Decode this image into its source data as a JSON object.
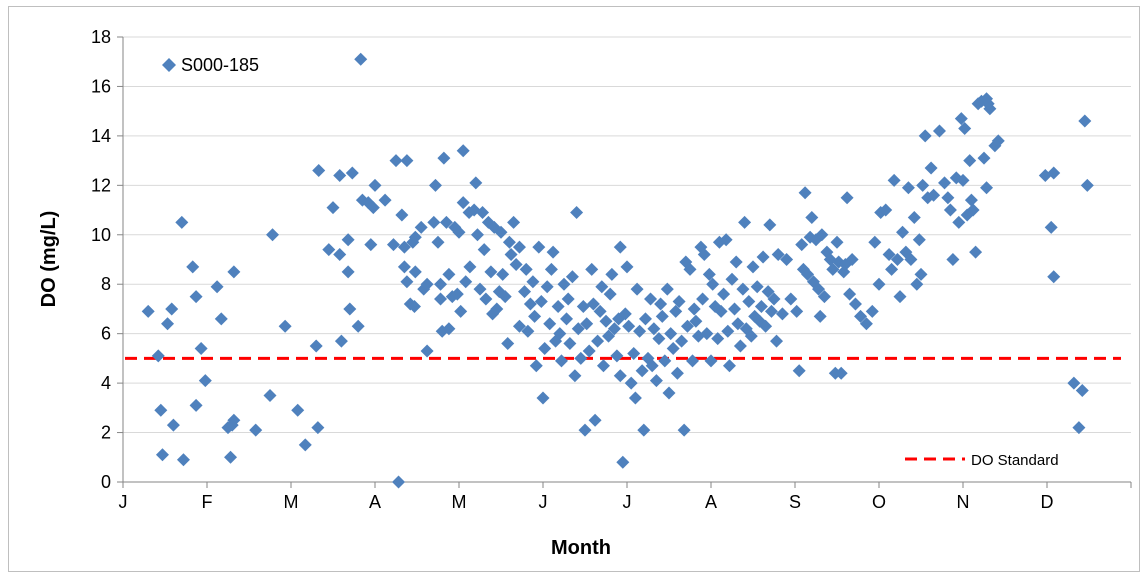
{
  "chart_data": {
    "type": "scatter",
    "title": "",
    "xlabel": "Month",
    "ylabel": "DO (mg/L)",
    "x_tick_labels": [
      "J",
      "F",
      "M",
      "A",
      "M",
      "J",
      "J",
      "A",
      "S",
      "O",
      "N",
      "D"
    ],
    "xlim": [
      1,
      13
    ],
    "ylim": [
      0,
      18
    ],
    "y_ticks": [
      "0",
      "2",
      "4",
      "6",
      "8",
      "10",
      "12",
      "14",
      "16",
      "18"
    ],
    "grid": "horizontal",
    "legend_position": "top-left",
    "series": [
      {
        "name": "S000-185",
        "color": "#4f81bd",
        "marker": "diamond",
        "points": [
          [
            1.3,
            6.9
          ],
          [
            1.42,
            5.1
          ],
          [
            1.45,
            2.9
          ],
          [
            1.47,
            1.1
          ],
          [
            1.53,
            6.4
          ],
          [
            1.58,
            7.0
          ],
          [
            1.6,
            2.3
          ],
          [
            1.7,
            10.5
          ],
          [
            1.72,
            0.9
          ],
          [
            1.83,
            8.7
          ],
          [
            1.87,
            7.5
          ],
          [
            1.87,
            3.1
          ],
          [
            1.93,
            5.4
          ],
          [
            1.98,
            4.1
          ],
          [
            2.12,
            7.9
          ],
          [
            2.17,
            6.6
          ],
          [
            2.25,
            2.2
          ],
          [
            2.28,
            1.0
          ],
          [
            2.32,
            8.5
          ],
          [
            2.32,
            2.5
          ],
          [
            2.3,
            2.3
          ],
          [
            2.58,
            2.1
          ],
          [
            2.75,
            3.5
          ],
          [
            2.78,
            10.0
          ],
          [
            2.93,
            6.3
          ],
          [
            3.08,
            2.9
          ],
          [
            3.17,
            1.5
          ],
          [
            3.3,
            5.5
          ],
          [
            3.32,
            2.2
          ],
          [
            3.33,
            12.6
          ],
          [
            3.45,
            9.4
          ],
          [
            3.5,
            11.1
          ],
          [
            3.58,
            12.4
          ],
          [
            3.6,
            5.7
          ],
          [
            3.58,
            9.2
          ],
          [
            3.68,
            8.5
          ],
          [
            3.68,
            9.8
          ],
          [
            3.7,
            7.0
          ],
          [
            3.73,
            12.5
          ],
          [
            3.8,
            6.3
          ],
          [
            3.83,
            17.1
          ],
          [
            3.85,
            11.4
          ],
          [
            3.92,
            11.3
          ],
          [
            3.95,
            9.6
          ],
          [
            3.98,
            11.1
          ],
          [
            4.0,
            12.0
          ],
          [
            4.12,
            11.4
          ],
          [
            4.22,
            9.6
          ],
          [
            4.25,
            13.0
          ],
          [
            4.28,
            0.0
          ],
          [
            4.32,
            10.8
          ],
          [
            4.35,
            9.5
          ],
          [
            4.38,
            13.0
          ],
          [
            4.35,
            8.7
          ],
          [
            4.38,
            8.1
          ],
          [
            4.42,
            7.2
          ],
          [
            4.45,
            9.7
          ],
          [
            4.47,
            7.1
          ],
          [
            4.48,
            8.5
          ],
          [
            4.48,
            9.9
          ],
          [
            4.55,
            10.3
          ],
          [
            4.58,
            7.8
          ],
          [
            4.62,
            8.0
          ],
          [
            4.62,
            5.3
          ],
          [
            4.7,
            10.5
          ],
          [
            4.72,
            12.0
          ],
          [
            4.75,
            9.7
          ],
          [
            4.78,
            8.0
          ],
          [
            4.78,
            7.4
          ],
          [
            4.8,
            6.1
          ],
          [
            4.82,
            13.1
          ],
          [
            4.85,
            10.5
          ],
          [
            4.88,
            8.4
          ],
          [
            4.88,
            6.2
          ],
          [
            4.92,
            7.5
          ],
          [
            4.95,
            10.3
          ],
          [
            4.98,
            7.6
          ],
          [
            5.0,
            10.1
          ],
          [
            5.02,
            6.9
          ],
          [
            5.05,
            13.4
          ],
          [
            5.05,
            11.3
          ],
          [
            5.08,
            8.1
          ],
          [
            5.12,
            10.9
          ],
          [
            5.13,
            8.7
          ],
          [
            5.18,
            11.0
          ],
          [
            5.2,
            12.1
          ],
          [
            5.22,
            10.0
          ],
          [
            5.25,
            7.8
          ],
          [
            5.28,
            10.9
          ],
          [
            5.3,
            9.4
          ],
          [
            5.32,
            7.4
          ],
          [
            5.35,
            10.5
          ],
          [
            5.38,
            8.5
          ],
          [
            5.4,
            6.8
          ],
          [
            5.42,
            10.3
          ],
          [
            5.45,
            7.0
          ],
          [
            5.48,
            7.7
          ],
          [
            5.5,
            10.1
          ],
          [
            5.52,
            8.4
          ],
          [
            5.55,
            7.5
          ],
          [
            5.58,
            5.6
          ],
          [
            5.6,
            9.7
          ],
          [
            5.62,
            9.2
          ],
          [
            5.65,
            10.5
          ],
          [
            5.68,
            8.8
          ],
          [
            5.72,
            9.5
          ],
          [
            5.72,
            6.3
          ],
          [
            5.78,
            7.7
          ],
          [
            5.8,
            8.6
          ],
          [
            5.82,
            6.1
          ],
          [
            5.85,
            7.2
          ],
          [
            5.88,
            8.1
          ],
          [
            5.9,
            6.7
          ],
          [
            5.92,
            4.7
          ],
          [
            5.95,
            9.5
          ],
          [
            5.98,
            7.3
          ],
          [
            6.0,
            3.4
          ],
          [
            6.02,
            5.4
          ],
          [
            6.05,
            7.9
          ],
          [
            6.08,
            6.4
          ],
          [
            6.1,
            8.6
          ],
          [
            6.12,
            9.3
          ],
          [
            6.15,
            5.7
          ],
          [
            6.18,
            7.1
          ],
          [
            6.2,
            6.0
          ],
          [
            6.22,
            4.9
          ],
          [
            6.25,
            8.0
          ],
          [
            6.28,
            6.6
          ],
          [
            6.3,
            7.4
          ],
          [
            6.32,
            5.6
          ],
          [
            6.35,
            8.3
          ],
          [
            6.38,
            4.3
          ],
          [
            6.4,
            10.9
          ],
          [
            6.42,
            6.2
          ],
          [
            6.45,
            5.0
          ],
          [
            6.48,
            7.1
          ],
          [
            6.5,
            2.1
          ],
          [
            6.52,
            6.4
          ],
          [
            6.55,
            5.3
          ],
          [
            6.58,
            8.6
          ],
          [
            6.6,
            7.2
          ],
          [
            6.62,
            2.5
          ],
          [
            6.65,
            5.7
          ],
          [
            6.68,
            6.9
          ],
          [
            6.7,
            7.9
          ],
          [
            6.72,
            4.7
          ],
          [
            6.75,
            6.5
          ],
          [
            6.78,
            5.9
          ],
          [
            6.8,
            7.6
          ],
          [
            6.82,
            8.4
          ],
          [
            6.85,
            6.2
          ],
          [
            6.88,
            5.1
          ],
          [
            6.9,
            6.6
          ],
          [
            6.92,
            9.5
          ],
          [
            6.92,
            4.3
          ],
          [
            6.95,
            0.8
          ],
          [
            6.98,
            6.8
          ],
          [
            7.0,
            8.7
          ],
          [
            7.02,
            6.3
          ],
          [
            7.05,
            4.0
          ],
          [
            7.08,
            5.2
          ],
          [
            7.1,
            3.4
          ],
          [
            7.12,
            7.8
          ],
          [
            7.15,
            6.1
          ],
          [
            7.18,
            4.5
          ],
          [
            7.2,
            2.1
          ],
          [
            7.22,
            6.6
          ],
          [
            7.25,
            5.0
          ],
          [
            7.28,
            7.4
          ],
          [
            7.3,
            4.7
          ],
          [
            7.32,
            6.2
          ],
          [
            7.35,
            4.1
          ],
          [
            7.38,
            5.8
          ],
          [
            7.4,
            7.2
          ],
          [
            7.42,
            6.7
          ],
          [
            7.45,
            4.9
          ],
          [
            7.48,
            7.8
          ],
          [
            7.5,
            3.6
          ],
          [
            7.52,
            6.0
          ],
          [
            7.55,
            5.4
          ],
          [
            7.58,
            6.9
          ],
          [
            7.6,
            4.4
          ],
          [
            7.62,
            7.3
          ],
          [
            7.65,
            5.7
          ],
          [
            7.68,
            2.1
          ],
          [
            7.7,
            8.9
          ],
          [
            7.72,
            6.3
          ],
          [
            7.75,
            8.6
          ],
          [
            7.78,
            4.9
          ],
          [
            7.8,
            7.0
          ],
          [
            7.82,
            6.5
          ],
          [
            7.85,
            5.9
          ],
          [
            7.88,
            9.5
          ],
          [
            7.9,
            7.4
          ],
          [
            7.92,
            9.2
          ],
          [
            7.95,
            6.0
          ],
          [
            7.98,
            8.4
          ],
          [
            8.0,
            4.9
          ],
          [
            8.02,
            8.0
          ],
          [
            8.05,
            7.1
          ],
          [
            8.08,
            5.8
          ],
          [
            8.1,
            9.7
          ],
          [
            8.12,
            6.9
          ],
          [
            8.15,
            7.6
          ],
          [
            8.18,
            9.8
          ],
          [
            8.2,
            6.1
          ],
          [
            8.22,
            4.7
          ],
          [
            8.25,
            8.2
          ],
          [
            8.28,
            7.0
          ],
          [
            8.3,
            8.9
          ],
          [
            8.32,
            6.4
          ],
          [
            8.35,
            5.5
          ],
          [
            8.38,
            7.8
          ],
          [
            8.4,
            10.5
          ],
          [
            8.42,
            6.2
          ],
          [
            8.45,
            7.3
          ],
          [
            8.48,
            5.9
          ],
          [
            8.5,
            8.7
          ],
          [
            8.52,
            6.7
          ],
          [
            8.55,
            7.9
          ],
          [
            8.58,
            6.5
          ],
          [
            8.6,
            7.1
          ],
          [
            8.62,
            9.1
          ],
          [
            8.65,
            6.3
          ],
          [
            8.68,
            7.7
          ],
          [
            8.7,
            10.4
          ],
          [
            8.72,
            6.9
          ],
          [
            8.75,
            7.4
          ],
          [
            8.78,
            5.7
          ],
          [
            8.8,
            9.2
          ],
          [
            8.85,
            6.8
          ],
          [
            8.9,
            9.0
          ],
          [
            8.95,
            7.4
          ],
          [
            9.02,
            6.9
          ],
          [
            9.05,
            4.5
          ],
          [
            9.08,
            9.6
          ],
          [
            9.1,
            8.6
          ],
          [
            9.12,
            11.7
          ],
          [
            9.15,
            8.4
          ],
          [
            9.18,
            9.9
          ],
          [
            9.2,
            10.7
          ],
          [
            9.22,
            8.1
          ],
          [
            9.25,
            9.8
          ],
          [
            9.28,
            7.8
          ],
          [
            9.3,
            6.7
          ],
          [
            9.32,
            10.0
          ],
          [
            9.35,
            7.5
          ],
          [
            9.38,
            9.3
          ],
          [
            9.42,
            9.0
          ],
          [
            9.45,
            8.6
          ],
          [
            9.48,
            4.4
          ],
          [
            9.5,
            9.7
          ],
          [
            9.52,
            8.9
          ],
          [
            9.55,
            4.4
          ],
          [
            9.58,
            8.5
          ],
          [
            9.6,
            8.8
          ],
          [
            9.62,
            11.5
          ],
          [
            9.65,
            7.6
          ],
          [
            9.68,
            9.0
          ],
          [
            9.72,
            7.2
          ],
          [
            9.78,
            6.7
          ],
          [
            9.85,
            6.4
          ],
          [
            9.92,
            6.9
          ],
          [
            9.95,
            9.7
          ],
          [
            10.0,
            8.0
          ],
          [
            10.02,
            10.9
          ],
          [
            10.08,
            11.0
          ],
          [
            10.12,
            9.2
          ],
          [
            10.15,
            8.6
          ],
          [
            10.18,
            12.2
          ],
          [
            10.22,
            9.0
          ],
          [
            10.25,
            7.5
          ],
          [
            10.28,
            10.1
          ],
          [
            10.32,
            9.3
          ],
          [
            10.35,
            11.9
          ],
          [
            10.38,
            9.0
          ],
          [
            10.42,
            10.7
          ],
          [
            10.45,
            8.0
          ],
          [
            10.48,
            9.8
          ],
          [
            10.5,
            8.4
          ],
          [
            10.52,
            12.0
          ],
          [
            10.55,
            14.0
          ],
          [
            10.58,
            11.5
          ],
          [
            10.62,
            12.7
          ],
          [
            10.65,
            11.6
          ],
          [
            10.72,
            14.2
          ],
          [
            10.78,
            12.1
          ],
          [
            10.82,
            11.5
          ],
          [
            10.85,
            11.0
          ],
          [
            10.88,
            9.0
          ],
          [
            10.92,
            12.3
          ],
          [
            10.95,
            10.5
          ],
          [
            10.98,
            14.7
          ],
          [
            11.0,
            12.2
          ],
          [
            11.02,
            14.3
          ],
          [
            11.05,
            10.8
          ],
          [
            11.08,
            13.0
          ],
          [
            11.1,
            11.4
          ],
          [
            11.12,
            11.0
          ],
          [
            11.15,
            9.3
          ],
          [
            11.18,
            15.3
          ],
          [
            11.22,
            15.4
          ],
          [
            11.25,
            13.1
          ],
          [
            11.28,
            15.5
          ],
          [
            11.28,
            11.9
          ],
          [
            11.32,
            15.1
          ],
          [
            11.38,
            13.6
          ],
          [
            11.42,
            13.8
          ],
          [
            11.98,
            12.4
          ],
          [
            12.05,
            10.3
          ],
          [
            12.08,
            12.5
          ],
          [
            12.08,
            8.3
          ],
          [
            12.32,
            4.0
          ],
          [
            12.38,
            2.2
          ],
          [
            12.42,
            3.7
          ],
          [
            12.45,
            14.6
          ],
          [
            12.48,
            12.0
          ],
          [
            11.3,
            15.3
          ]
        ]
      },
      {
        "name": "DO Standard",
        "color": "#ff0000",
        "style": "dashed-line",
        "value": 5
      }
    ]
  }
}
